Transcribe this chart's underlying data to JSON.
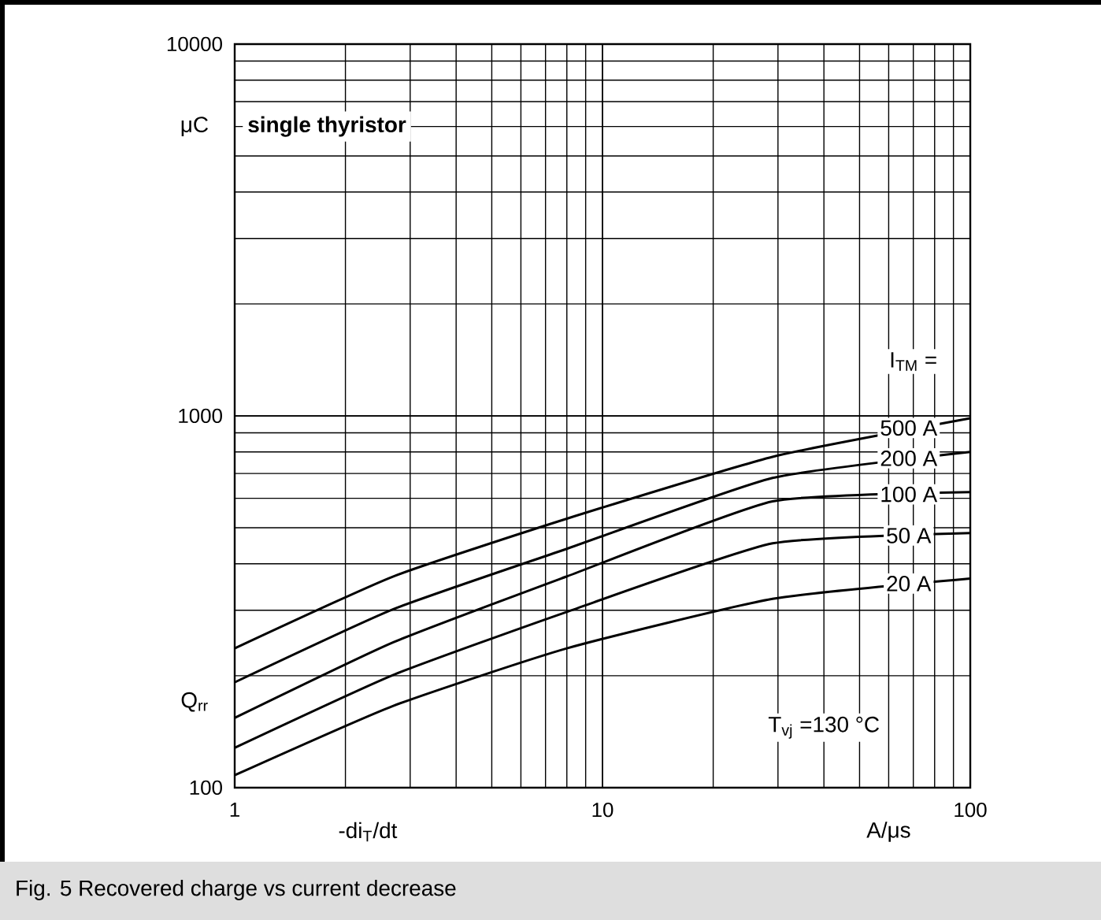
{
  "chart_data": {
    "type": "line",
    "xlabel": "-di$_{T}$/dt",
    "ylabel": "Q$_{rr}$",
    "x": [
      1,
      2.7,
      8,
      29,
      100
    ],
    "series": [
      {
        "name": "500 A",
        "color": "#000000",
        "values": [
          237,
          370,
          529,
          776,
          985
        ]
      },
      {
        "name": "200 A",
        "color": "#000000",
        "values": [
          192,
          302,
          439,
          681,
          800
        ]
      },
      {
        "name": "100 A",
        "color": "#000000",
        "values": [
          154,
          246,
          370,
          589,
          624
        ]
      },
      {
        "name": "50 A",
        "color": "#000000",
        "values": [
          128,
          201,
          297,
          454,
          484
        ]
      },
      {
        "name": "20 A",
        "color": "#000000",
        "values": [
          108,
          166,
          237,
          322,
          365
        ]
      }
    ],
    "legend_title": "I$_{TM}$ =",
    "annotations": [
      "single thyristor",
      "T$_{vj}$ =130 °C",
      "μC",
      "A/μs",
      "Fig. 5 Recovered charge vs current decrease"
    ],
    "log": "xy",
    "grid": true,
    "line_style": "solid",
    "marker": "none",
    "xlim": [
      1,
      100
    ],
    "ylim": [
      100,
      10000
    ],
    "xticks": [
      1,
      10,
      100
    ],
    "yticks": [
      100,
      1000,
      10000
    ]
  }
}
